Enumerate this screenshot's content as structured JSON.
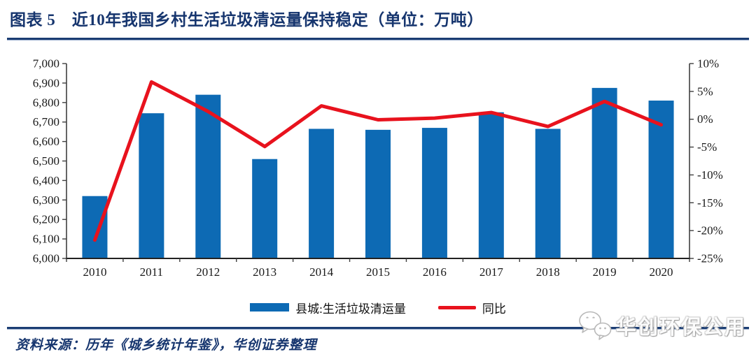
{
  "header": {
    "title": "图表 5　近10年我国乡村生活垃圾清运量保持稳定（单位：万吨）"
  },
  "chart_data": {
    "type": "bar",
    "subtype": "bar+line combo, dual axis",
    "categories": [
      "2010",
      "2011",
      "2012",
      "2013",
      "2014",
      "2015",
      "2016",
      "2017",
      "2018",
      "2019",
      "2020"
    ],
    "series": [
      {
        "name": "县城:生活垃圾清运量",
        "type": "bar",
        "axis": "left",
        "values": [
          6320,
          6745,
          6840,
          6510,
          6665,
          6660,
          6670,
          6750,
          6665,
          6875,
          6810
        ]
      },
      {
        "name": "同比",
        "type": "line",
        "axis": "right",
        "values": [
          -21.7,
          6.7,
          1.4,
          -4.9,
          2.4,
          -0.1,
          0.2,
          1.2,
          -1.3,
          3.2,
          -1.0
        ]
      }
    ],
    "left_axis": {
      "min": 6000,
      "max": 7000,
      "step": 100,
      "tick_labels": [
        "7,000",
        "6,900",
        "6,800",
        "6,700",
        "6,600",
        "6,500",
        "6,400",
        "6,300",
        "6,200",
        "6,100",
        "6,000"
      ]
    },
    "right_axis": {
      "min": -25,
      "max": 10,
      "step": 5,
      "tick_labels": [
        "10%",
        "5%",
        "0%",
        "-5%",
        "-10%",
        "-15%",
        "-20%",
        "-25%"
      ]
    },
    "grid": false,
    "legend_position": "bottom"
  },
  "legend": {
    "bar_label": "县城:生活垃圾清运量",
    "line_label": "同比"
  },
  "footer": {
    "source": "资料来源：历年《城乡统计年鉴》，华创证券整理"
  },
  "watermark": {
    "icon": "wechat-icon",
    "text": "华创环保公用"
  },
  "colors": {
    "navy": "#16356e",
    "bar_blue": "#0d6ab4",
    "line_red": "#e8121d",
    "axis": "#3f3f3f"
  }
}
